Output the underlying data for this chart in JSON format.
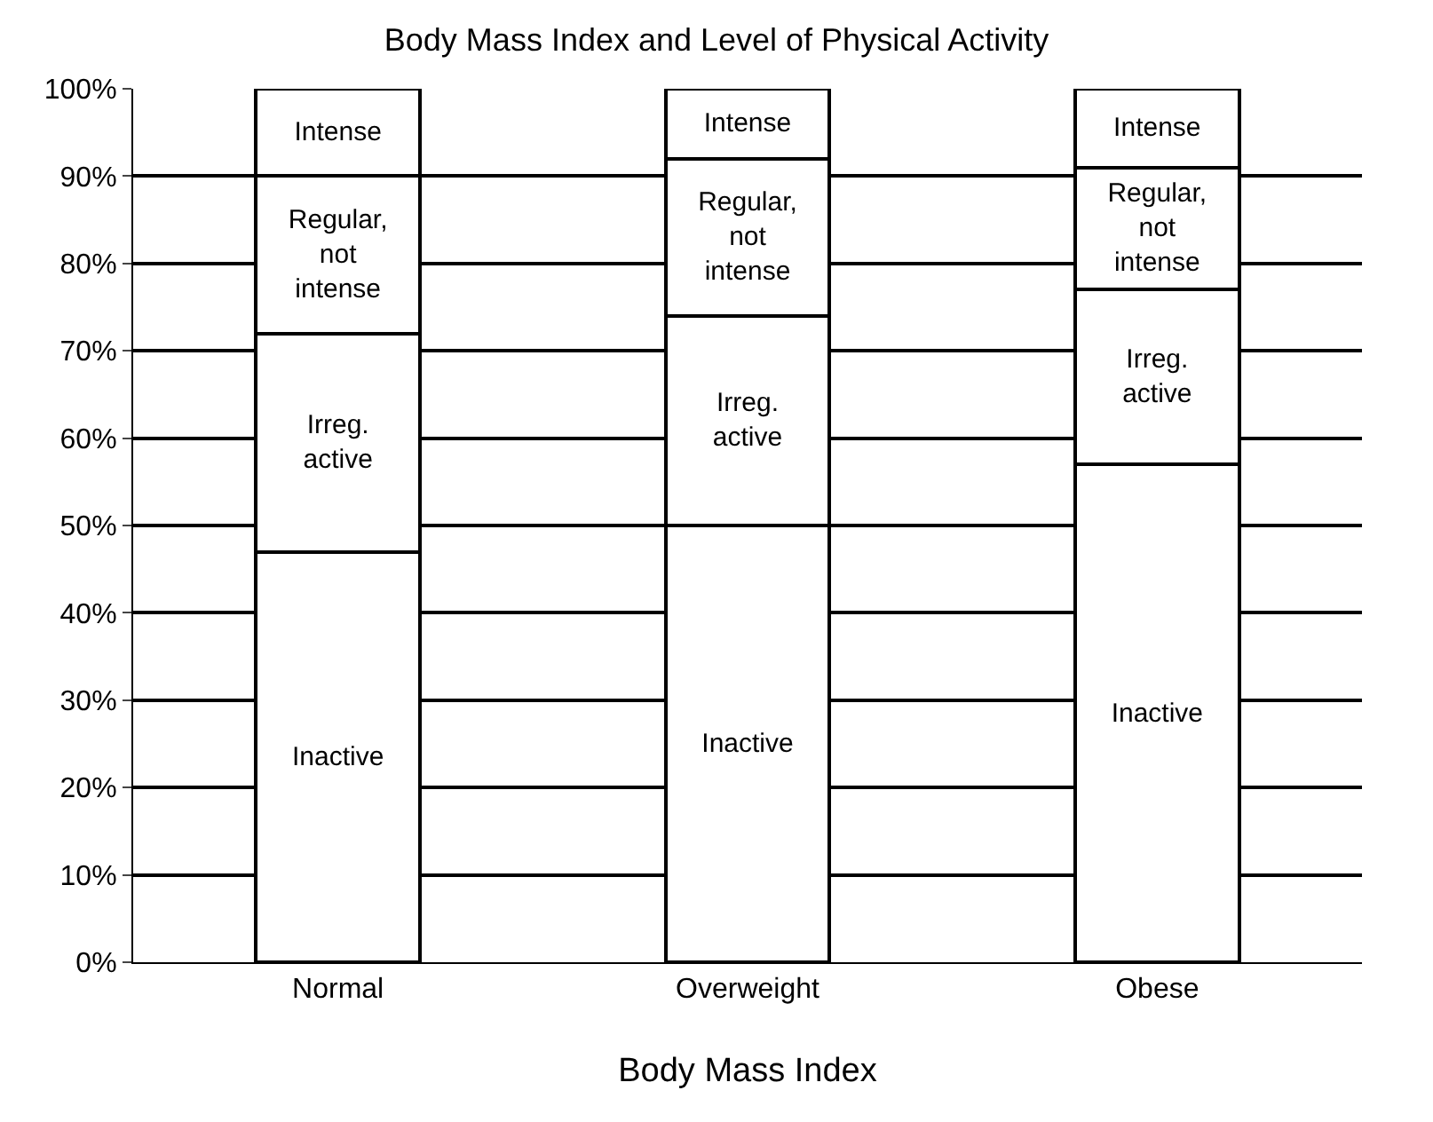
{
  "chart_data": {
    "type": "bar",
    "title": "Body Mass Index and Level of Physical Activity",
    "xlabel": "Body Mass Index",
    "categories": [
      "Normal",
      "Overweight",
      "Obese"
    ],
    "stacked": true,
    "grid": "y",
    "legend": false,
    "ylim": [
      0,
      100
    ],
    "yticks": [
      {
        "value": 0,
        "label": "0%"
      },
      {
        "value": 10,
        "label": "10%"
      },
      {
        "value": 20,
        "label": "20%"
      },
      {
        "value": 30,
        "label": "30%"
      },
      {
        "value": 40,
        "label": "40%"
      },
      {
        "value": 50,
        "label": "50%"
      },
      {
        "value": 60,
        "label": "60%"
      },
      {
        "value": 70,
        "label": "70%"
      },
      {
        "value": 80,
        "label": "80%"
      },
      {
        "value": 90,
        "label": "90%"
      },
      {
        "value": 100,
        "label": "100%"
      }
    ],
    "series": [
      {
        "name": "Inactive",
        "color": "#ffffff",
        "values": [
          47,
          50,
          57
        ]
      },
      {
        "name": "Irreg. active",
        "color": "#ffffff",
        "values": [
          25,
          24,
          20
        ]
      },
      {
        "name": "Regular, not intense",
        "color": "#ffffff",
        "values": [
          18,
          18,
          14
        ]
      },
      {
        "name": "Intense",
        "color": "#ffffff",
        "values": [
          10,
          8,
          9
        ]
      }
    ]
  }
}
